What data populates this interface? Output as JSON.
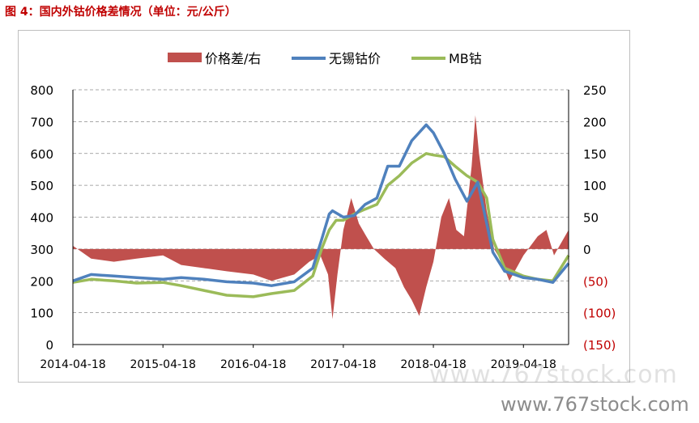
{
  "figure_title": "图 4：国内外钴价格差情况（单位：元/公斤）",
  "watermark": {
    "line1": "www.767stock.com",
    "line2": "www.767stock.com"
  },
  "colors": {
    "spread": "#c0504d",
    "wuxi": "#4f81bd",
    "mb": "#9bbb59",
    "title": "#c00000",
    "right_axis_negative": "#c00000"
  },
  "chart_data": {
    "type": "line",
    "title": "",
    "legend_position": "top",
    "legend": [
      {
        "name": "价格差/右",
        "type": "area",
        "color": "#c0504d"
      },
      {
        "name": "无锡钴价",
        "type": "line",
        "color": "#4f81bd"
      },
      {
        "name": "MB钴",
        "type": "line",
        "color": "#9bbb59"
      }
    ],
    "y_left": {
      "min": 0,
      "max": 800,
      "ticks": [
        "0",
        "100",
        "200",
        "300",
        "400",
        "500",
        "600",
        "700",
        "800"
      ]
    },
    "y_right": {
      "min": -150,
      "max": 250,
      "ticks": [
        "(150)",
        "(100)",
        "(50)",
        "0",
        "50",
        "100",
        "150",
        "200",
        "250"
      ]
    },
    "x_ticks": [
      "2014-04-18",
      "2015-04-18",
      "2016-04-18",
      "2017-04-18",
      "2018-04-18",
      "2019-04-18"
    ],
    "x_range": [
      "2014-04-18",
      "2019-10-18"
    ],
    "gridlines": "horizontal-dashed",
    "series": [
      {
        "name": "无锡钴价",
        "axis": "left",
        "points": [
          [
            "2014-04-18",
            200
          ],
          [
            "2014-07-01",
            220
          ],
          [
            "2014-10-01",
            215
          ],
          [
            "2015-01-01",
            210
          ],
          [
            "2015-04-18",
            205
          ],
          [
            "2015-07-01",
            210
          ],
          [
            "2015-10-01",
            205
          ],
          [
            "2016-01-01",
            197
          ],
          [
            "2016-04-18",
            193
          ],
          [
            "2016-07-01",
            185
          ],
          [
            "2016-10-01",
            197
          ],
          [
            "2016-12-15",
            240
          ],
          [
            "2017-01-20",
            330
          ],
          [
            "2017-02-20",
            410
          ],
          [
            "2017-03-05",
            420
          ],
          [
            "2017-04-18",
            400
          ],
          [
            "2017-06-01",
            405
          ],
          [
            "2017-07-15",
            440
          ],
          [
            "2017-09-01",
            460
          ],
          [
            "2017-10-15",
            560
          ],
          [
            "2017-12-01",
            560
          ],
          [
            "2018-01-20",
            640
          ],
          [
            "2018-03-20",
            690
          ],
          [
            "2018-04-18",
            665
          ],
          [
            "2018-06-01",
            600
          ],
          [
            "2018-07-15",
            520
          ],
          [
            "2018-09-01",
            450
          ],
          [
            "2018-10-15",
            510
          ],
          [
            "2018-11-20",
            380
          ],
          [
            "2018-12-15",
            290
          ],
          [
            "2019-02-01",
            230
          ],
          [
            "2019-04-18",
            210
          ],
          [
            "2019-06-15",
            205
          ],
          [
            "2019-08-15",
            195
          ],
          [
            "2019-10-18",
            255
          ]
        ]
      },
      {
        "name": "MB钴",
        "axis": "left",
        "points": [
          [
            "2014-04-18",
            195
          ],
          [
            "2014-07-01",
            205
          ],
          [
            "2014-10-01",
            200
          ],
          [
            "2015-01-01",
            193
          ],
          [
            "2015-04-18",
            195
          ],
          [
            "2015-07-01",
            185
          ],
          [
            "2015-10-01",
            170
          ],
          [
            "2016-01-01",
            155
          ],
          [
            "2016-04-18",
            150
          ],
          [
            "2016-07-01",
            160
          ],
          [
            "2016-10-01",
            170
          ],
          [
            "2016-12-15",
            215
          ],
          [
            "2017-01-20",
            300
          ],
          [
            "2017-02-20",
            360
          ],
          [
            "2017-03-20",
            390
          ],
          [
            "2017-04-18",
            390
          ],
          [
            "2017-06-01",
            410
          ],
          [
            "2017-07-15",
            425
          ],
          [
            "2017-09-01",
            440
          ],
          [
            "2017-10-15",
            500
          ],
          [
            "2017-12-01",
            530
          ],
          [
            "2018-01-20",
            570
          ],
          [
            "2018-03-20",
            600
          ],
          [
            "2018-04-18",
            595
          ],
          [
            "2018-06-01",
            590
          ],
          [
            "2018-07-15",
            560
          ],
          [
            "2018-09-01",
            530
          ],
          [
            "2018-10-15",
            510
          ],
          [
            "2018-11-20",
            460
          ],
          [
            "2018-12-15",
            330
          ],
          [
            "2019-02-01",
            240
          ],
          [
            "2019-04-18",
            215
          ],
          [
            "2019-06-15",
            205
          ],
          [
            "2019-08-15",
            200
          ],
          [
            "2019-10-18",
            280
          ]
        ]
      },
      {
        "name": "价格差/右",
        "axis": "right",
        "points": [
          [
            "2014-04-18",
            5
          ],
          [
            "2014-07-01",
            -15
          ],
          [
            "2014-10-01",
            -20
          ],
          [
            "2015-01-01",
            -15
          ],
          [
            "2015-04-18",
            -10
          ],
          [
            "2015-07-01",
            -25
          ],
          [
            "2015-10-01",
            -30
          ],
          [
            "2016-01-01",
            -35
          ],
          [
            "2016-04-18",
            -40
          ],
          [
            "2016-07-01",
            -50
          ],
          [
            "2016-10-01",
            -40
          ],
          [
            "2016-12-01",
            -20
          ],
          [
            "2017-01-15",
            -10
          ],
          [
            "2017-02-15",
            -40
          ],
          [
            "2017-03-05",
            -110
          ],
          [
            "2017-03-25",
            -40
          ],
          [
            "2017-04-18",
            30
          ],
          [
            "2017-05-20",
            80
          ],
          [
            "2017-06-20",
            40
          ],
          [
            "2017-07-20",
            20
          ],
          [
            "2017-08-20",
            0
          ],
          [
            "2017-10-01",
            -15
          ],
          [
            "2017-11-15",
            -30
          ],
          [
            "2017-12-20",
            -60
          ],
          [
            "2018-01-20",
            -80
          ],
          [
            "2018-02-20",
            -105
          ],
          [
            "2018-03-20",
            -60
          ],
          [
            "2018-04-18",
            -20
          ],
          [
            "2018-05-20",
            50
          ],
          [
            "2018-06-20",
            80
          ],
          [
            "2018-07-20",
            30
          ],
          [
            "2018-08-20",
            20
          ],
          [
            "2018-09-20",
            130
          ],
          [
            "2018-10-05",
            210
          ],
          [
            "2018-10-20",
            150
          ],
          [
            "2018-11-20",
            60
          ],
          [
            "2018-12-20",
            0
          ],
          [
            "2019-01-20",
            -20
          ],
          [
            "2019-02-20",
            -50
          ],
          [
            "2019-04-18",
            -10
          ],
          [
            "2019-06-15",
            20
          ],
          [
            "2019-07-20",
            30
          ],
          [
            "2019-08-20",
            -10
          ],
          [
            "2019-10-18",
            30
          ]
        ]
      }
    ]
  }
}
